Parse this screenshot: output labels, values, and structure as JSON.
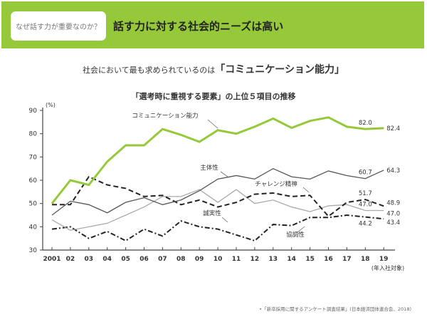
{
  "header": {
    "badge": "なぜ話す力が重要なのか？",
    "title": "話す力に対する社会的ニーズは高い"
  },
  "subtitle_prefix": "社会において最も求められているのは",
  "subtitle_emph": "「コミュニケーション能力」",
  "source": "•「新卒採用に関するアンケート調査結果」(日本経済団体連合会、2018)",
  "chart_data": {
    "type": "line",
    "title": "「選考時に重視する要素」の上位５項目の推移",
    "ylabel": "(%)",
    "xlabel": "(年入社対象)",
    "ylim": [
      30,
      90
    ],
    "yticks": [
      30,
      40,
      50,
      60,
      70,
      80,
      90
    ],
    "categories": [
      "2001",
      "02",
      "03",
      "04",
      "05",
      "06",
      "07",
      "08",
      "09",
      "10",
      "11",
      "12",
      "13",
      "14",
      "15",
      "16",
      "17",
      "18",
      "19"
    ],
    "series": [
      {
        "name": "コミュニケーション能力",
        "color": "#95c93a",
        "style": "solid-highlight",
        "values": [
          50,
          60,
          58,
          68,
          75,
          75,
          82,
          79.5,
          76.5,
          81.5,
          80,
          83,
          86.5,
          82.5,
          85.5,
          87,
          83,
          82.0,
          82.4
        ],
        "labels": {
          "17": "82.0",
          "18": "82.4"
        }
      },
      {
        "name": "主体性",
        "color": "#555555",
        "style": "solid",
        "values": [
          45,
          51,
          49.5,
          46,
          50.5,
          52.5,
          49.5,
          51.5,
          55.5,
          60.5,
          62,
          60.5,
          65,
          61.5,
          60.5,
          64,
          62,
          60.7,
          64.3
        ],
        "labels": {
          "17": "60.7",
          "18": "64.3"
        }
      },
      {
        "name": "チャレンジ精神",
        "color": "#222222",
        "style": "dash",
        "values": [
          49.5,
          49.5,
          61.5,
          58,
          56.5,
          53,
          53.5,
          49.5,
          51.5,
          48.5,
          50.5,
          54,
          54.5,
          53,
          53.5,
          44.5,
          50.5,
          51.7,
          48.9
        ],
        "labels": {
          "17": "51.7",
          "18": "48.9"
        }
      },
      {
        "name": "協調性",
        "color": "#aaaaaa",
        "style": "solid",
        "values": [
          43,
          38.5,
          40,
          41.5,
          45,
          48.5,
          53,
          53,
          56,
          50.5,
          56,
          50,
          51.5,
          48.5,
          46.5,
          49,
          49.5,
          47.0,
          47.0
        ],
        "labels": {
          "17": "47.0",
          "18": "47.0"
        }
      },
      {
        "name": "誠実性",
        "color": "#222222",
        "style": "dashdot",
        "values": [
          39,
          40,
          35,
          38,
          34,
          39,
          36,
          42.5,
          40,
          39,
          36.5,
          34,
          41,
          40.5,
          44,
          44,
          45,
          44.2,
          43.4
        ],
        "labels": {
          "17": "44.2",
          "18": "43.4"
        }
      }
    ]
  }
}
